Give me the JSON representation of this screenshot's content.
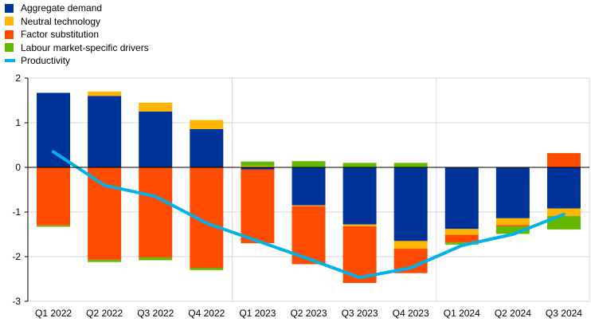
{
  "chart_data": {
    "type": "bar",
    "stacked": true,
    "categories": [
      "Q1 2022",
      "Q2 2022",
      "Q3 2022",
      "Q4 2022",
      "Q1 2023",
      "Q2 2023",
      "Q3 2023",
      "Q4 2023",
      "Q1 2024",
      "Q2 2024",
      "Q3 2024"
    ],
    "series": [
      {
        "name": "Aggregate demand",
        "kind": "bar",
        "color": "#003399",
        "values": [
          1.67,
          1.6,
          1.25,
          0.86,
          -0.05,
          -0.85,
          -1.28,
          -1.65,
          -1.38,
          -1.14,
          -0.92
        ]
      },
      {
        "name": "Neutral technology",
        "kind": "bar",
        "color": "#ffb400",
        "values": [
          0.0,
          0.1,
          0.2,
          0.2,
          0.03,
          -0.02,
          -0.04,
          -0.17,
          -0.13,
          -0.15,
          -0.17
        ]
      },
      {
        "name": "Factor substitution",
        "kind": "bar",
        "color": "#ff4b00",
        "values": [
          -1.3,
          -2.07,
          -2.02,
          -2.25,
          -1.65,
          -1.3,
          -1.27,
          -0.55,
          -0.17,
          -0.03,
          0.32
        ]
      },
      {
        "name": "Labour market-specific drivers",
        "kind": "bar",
        "color": "#65b800",
        "values": [
          -0.03,
          -0.05,
          -0.06,
          -0.05,
          0.1,
          0.14,
          0.1,
          0.1,
          -0.05,
          -0.17,
          -0.3
        ]
      },
      {
        "name": "Productivity",
        "kind": "line",
        "color": "#00b1ea",
        "values": [
          0.35,
          -0.4,
          -0.65,
          -1.25,
          -1.65,
          -2.05,
          -2.47,
          -2.25,
          -1.75,
          -1.5,
          -1.05
        ]
      }
    ],
    "ylim": [
      -3,
      2
    ],
    "yticks": [
      -3,
      -2,
      -1,
      0,
      1,
      2
    ],
    "ytick_labels": [
      "-3",
      "-2",
      "-1",
      "0",
      "1",
      "2"
    ],
    "grid": true,
    "group_dividers_after": [
      3,
      7
    ],
    "legend_position": "top-left",
    "title": "",
    "xlabel": "",
    "ylabel": ""
  }
}
